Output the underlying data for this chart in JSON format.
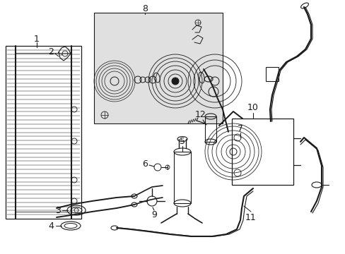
{
  "bg_color": "#ffffff",
  "line_color": "#1a1a1a",
  "box_color": "#e0e0e0",
  "fig_w": 4.89,
  "fig_h": 3.6,
  "dpi": 100
}
